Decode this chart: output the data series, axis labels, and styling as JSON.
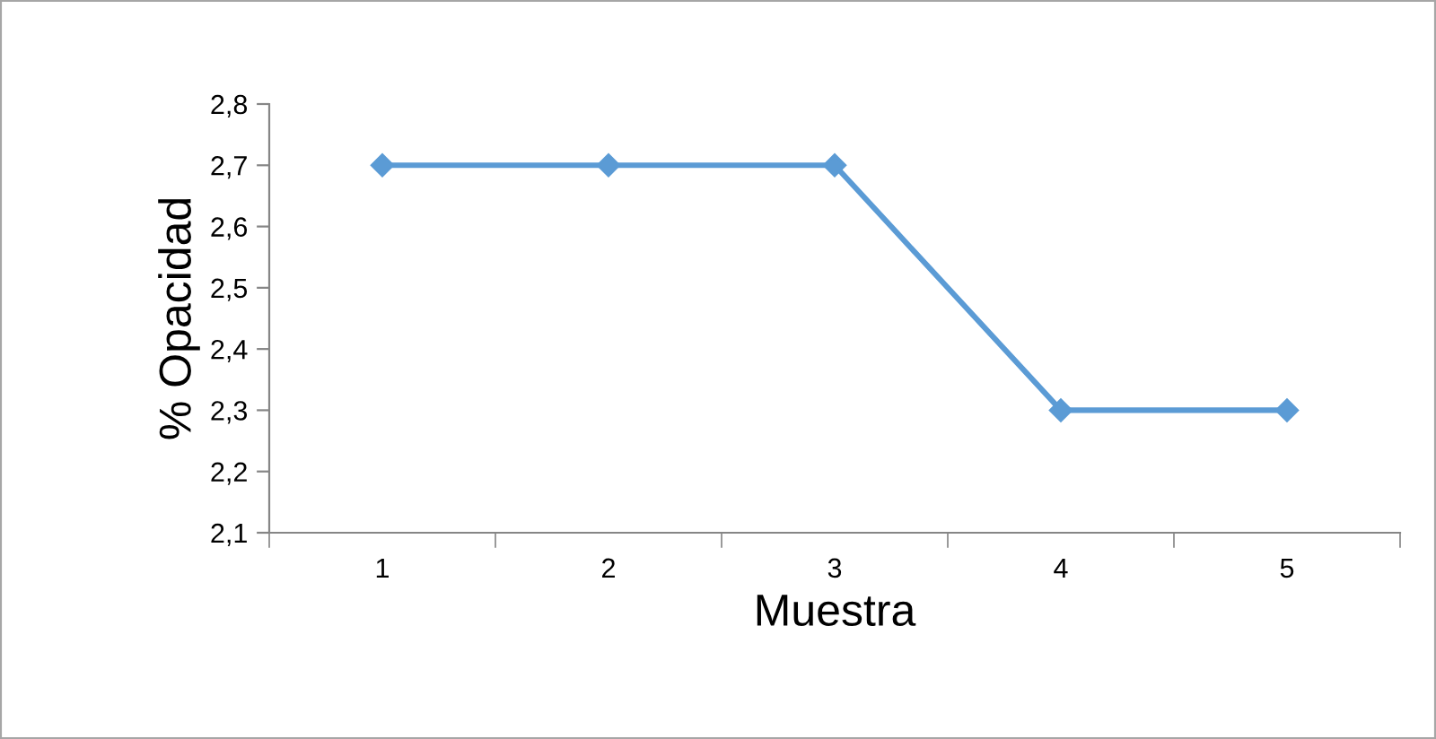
{
  "chart_data": {
    "type": "line",
    "xlabel": "Muestra",
    "ylabel": "% Opacidad",
    "categories": [
      "1",
      "2",
      "3",
      "4",
      "5"
    ],
    "series": [
      {
        "color": "#5b9bd5",
        "values": [
          2.7,
          2.7,
          2.7,
          2.3,
          2.3
        ]
      }
    ],
    "ylim": [
      2.1,
      2.8
    ],
    "yticks": [
      {
        "value": 2.1,
        "label": "2,1"
      },
      {
        "value": 2.2,
        "label": "2,2"
      },
      {
        "value": 2.3,
        "label": "2,3"
      },
      {
        "value": 2.4,
        "label": "2,4"
      },
      {
        "value": 2.5,
        "label": "2,5"
      },
      {
        "value": 2.6,
        "label": "2,6"
      },
      {
        "value": 2.7,
        "label": "2,7"
      },
      {
        "value": 2.8,
        "label": "2,8"
      }
    ],
    "marker": "diamond",
    "line_style": "solid",
    "grid": false,
    "legend": false
  }
}
